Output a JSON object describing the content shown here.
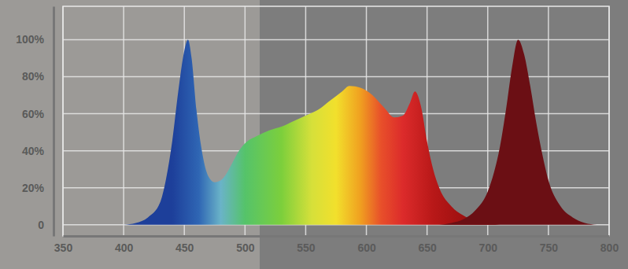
{
  "chart_data": {
    "type": "area",
    "series": [
      {
        "x": [
          400,
          410,
          420,
          430,
          435,
          440,
          445,
          450,
          453,
          456,
          460,
          465,
          470,
          475,
          480,
          485,
          490,
          495,
          500,
          510,
          520,
          530,
          540,
          550,
          560,
          570,
          580,
          586,
          595,
          605,
          615,
          623,
          630,
          636,
          640,
          645,
          650,
          655,
          660,
          670,
          680,
          690,
          700,
          710
        ],
        "values": [
          0,
          1,
          4,
          12,
          25,
          45,
          72,
          94,
          100,
          90,
          62,
          38,
          26,
          23,
          24,
          28,
          34,
          40,
          44,
          48,
          51,
          53,
          56,
          59,
          62,
          67,
          72,
          75,
          74,
          70,
          63,
          58,
          59,
          66,
          72,
          64,
          45,
          30,
          20,
          10,
          5,
          2,
          1,
          0
        ]
      },
      {
        "x": [
          660,
          670,
          680,
          690,
          700,
          705,
          710,
          715,
          720,
          725,
          730,
          735,
          740,
          745,
          750,
          760,
          770,
          780,
          790
        ],
        "values": [
          0,
          1,
          3,
          8,
          18,
          28,
          42,
          62,
          85,
          100,
          92,
          75,
          55,
          38,
          24,
          10,
          4,
          1,
          0
        ],
        "color": "#6b0f14"
      }
    ],
    "xlim": [
      350,
      800
    ],
    "xticks": [
      350,
      400,
      450,
      500,
      550,
      600,
      650,
      700,
      750,
      800
    ],
    "ylim": [
      -6,
      118
    ],
    "yticks": [
      0,
      {
        "value": 20,
        "label": "20%"
      },
      {
        "value": 40,
        "label": "40%"
      },
      {
        "value": 60,
        "label": "60%"
      },
      {
        "value": 80,
        "label": "80%"
      },
      {
        "value": 100,
        "label": "100%"
      }
    ],
    "grid": true
  }
}
